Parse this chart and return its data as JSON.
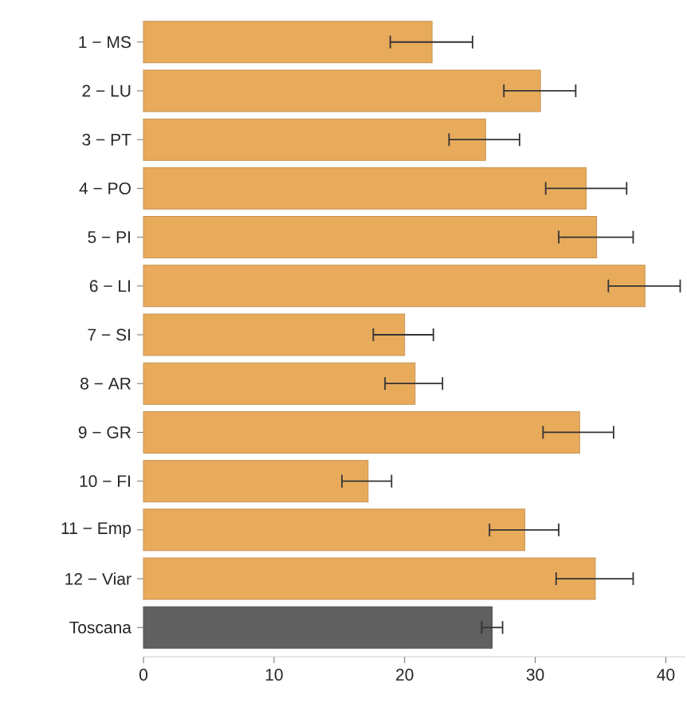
{
  "chart_data": {
    "type": "bar",
    "orientation": "horizontal",
    "categories": [
      "1 − MS",
      "2 − LU",
      "3 − PT",
      "4 − PO",
      "5 − PI",
      "6 − LI",
      "7 − SI",
      "8 − AR",
      "9 − GR",
      "10 − FI",
      "11 − Emp",
      "12 − Viar",
      "Toscana"
    ],
    "values": [
      22.1,
      30.4,
      26.2,
      33.9,
      34.7,
      38.4,
      20.0,
      20.8,
      33.4,
      17.2,
      29.2,
      34.6,
      26.7
    ],
    "errors": [
      [
        18.9,
        25.2
      ],
      [
        27.6,
        33.1
      ],
      [
        23.4,
        28.8
      ],
      [
        30.8,
        37.0
      ],
      [
        31.8,
        37.5
      ],
      [
        35.6,
        41.1
      ],
      [
        17.6,
        22.2
      ],
      [
        18.5,
        22.9
      ],
      [
        30.6,
        36.0
      ],
      [
        15.2,
        19.0
      ],
      [
        26.5,
        31.8
      ],
      [
        31.6,
        37.5
      ],
      [
        25.9,
        27.5
      ]
    ],
    "colors": [
      "#e8ab5c",
      "#e8ab5c",
      "#e8ab5c",
      "#e8ab5c",
      "#e8ab5c",
      "#e8ab5c",
      "#e8ab5c",
      "#e8ab5c",
      "#e8ab5c",
      "#e8ab5c",
      "#e8ab5c",
      "#e8ab5c",
      "#606060"
    ],
    "xlim": [
      0,
      41.5
    ],
    "xticks": [
      0,
      10,
      20,
      30,
      40
    ],
    "grid": false
  }
}
